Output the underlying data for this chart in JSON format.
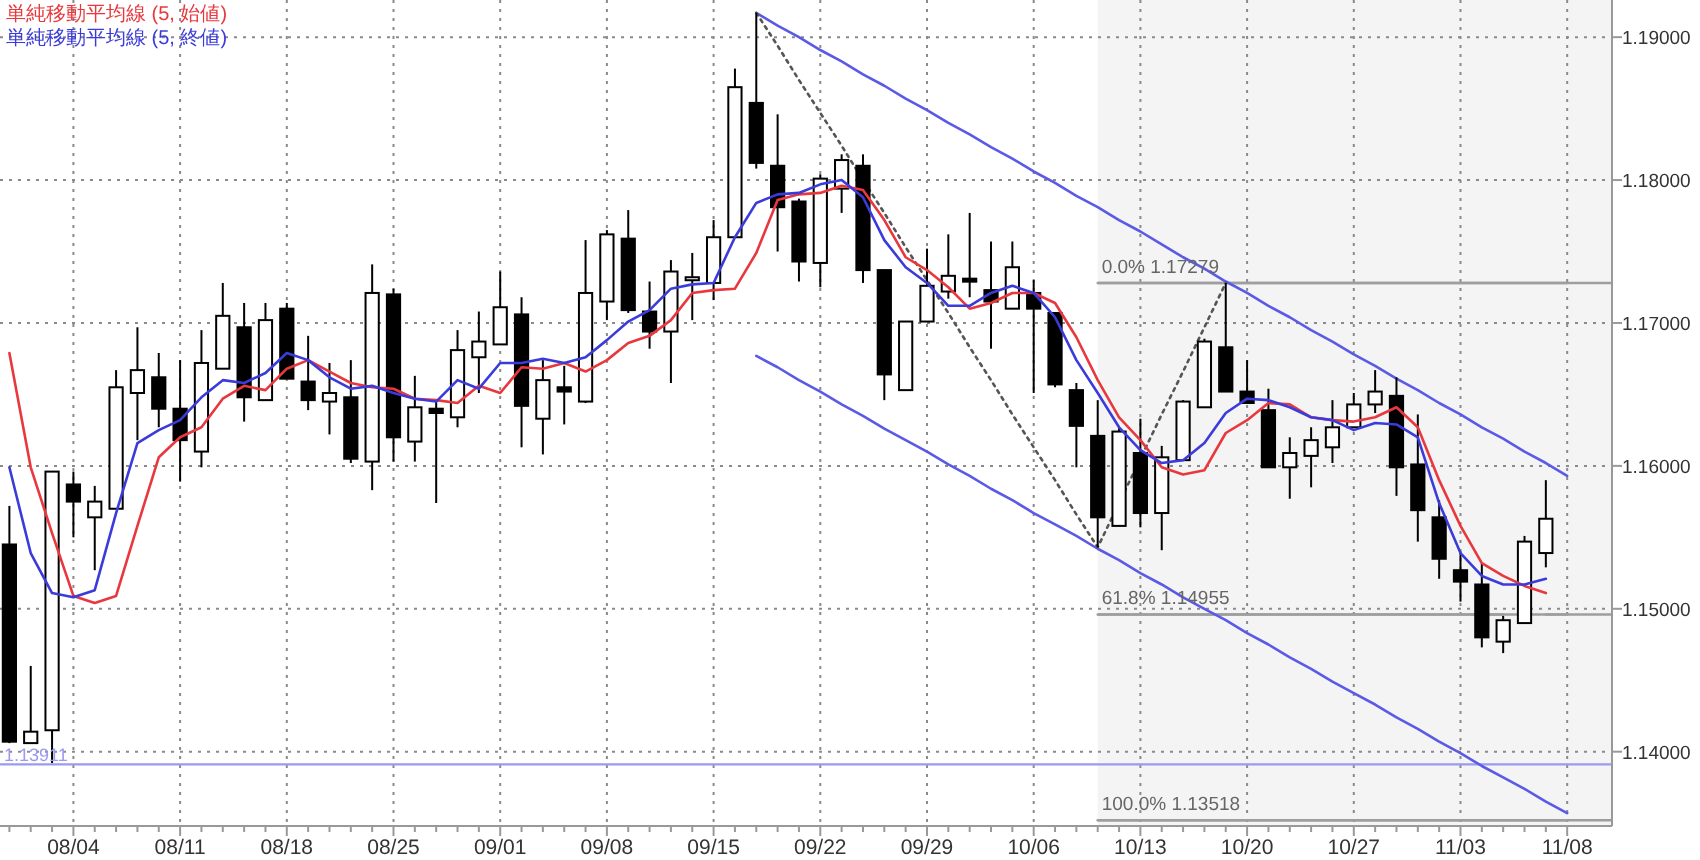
{
  "chart_data": {
    "type": "candlestick",
    "categories": [
      null,
      null,
      null,
      "08/04",
      null,
      null,
      null,
      null,
      "08/11",
      null,
      null,
      null,
      null,
      "08/18",
      null,
      null,
      null,
      null,
      "08/25",
      null,
      null,
      null,
      null,
      "09/01",
      null,
      null,
      null,
      null,
      "09/08",
      null,
      null,
      null,
      null,
      "09/15",
      null,
      null,
      null,
      null,
      "09/22",
      null,
      null,
      null,
      null,
      "09/29",
      null,
      null,
      null,
      null,
      "10/06",
      null,
      null,
      null,
      null,
      "10/13",
      null,
      null,
      null,
      null,
      "10/20",
      null,
      null,
      null,
      null,
      "10/27",
      null,
      null,
      null,
      null,
      "11/03",
      null,
      null,
      null,
      null,
      "11/08"
    ],
    "ohlc": [
      [
        1.1545,
        1.1572,
        1.1406,
        1.1407
      ],
      [
        1.1406,
        1.146,
        1.1406,
        1.1414
      ],
      [
        1.1415,
        1.1596,
        1.1392,
        1.1596
      ],
      [
        1.1587,
        1.1596,
        1.155,
        1.1575
      ],
      [
        1.1564,
        1.1586,
        1.1527,
        1.1575
      ],
      [
        1.157,
        1.1667,
        1.157,
        1.1655
      ],
      [
        1.1651,
        1.1697,
        1.1618,
        1.1667
      ],
      [
        1.1662,
        1.1679,
        1.1627,
        1.164
      ],
      [
        1.164,
        1.1674,
        1.1589,
        1.1618
      ],
      [
        1.161,
        1.1695,
        1.1599,
        1.1672
      ],
      [
        1.1668,
        1.1728,
        1.1668,
        1.1705
      ],
      [
        1.1697,
        1.1714,
        1.1631,
        1.1648
      ],
      [
        1.1646,
        1.1714,
        1.1646,
        1.1702
      ],
      [
        1.171,
        1.1714,
        1.1661,
        1.1661
      ],
      [
        1.1659,
        1.1691,
        1.1639,
        1.1646
      ],
      [
        1.1645,
        1.1672,
        1.1622,
        1.1651
      ],
      [
        1.1648,
        1.1674,
        1.1602,
        1.1605
      ],
      [
        1.1603,
        1.1741,
        1.1583,
        1.1721
      ],
      [
        1.172,
        1.1724,
        1.1603,
        1.162
      ],
      [
        1.1617,
        1.1663,
        1.1603,
        1.1641
      ],
      [
        1.164,
        1.1645,
        1.1574,
        1.1637
      ],
      [
        1.1634,
        1.1695,
        1.1627,
        1.1681
      ],
      [
        1.1676,
        1.1708,
        1.1651,
        1.1687
      ],
      [
        1.1685,
        1.1736,
        1.1685,
        1.1711
      ],
      [
        1.1706,
        1.1718,
        1.1613,
        1.1642
      ],
      [
        1.1633,
        1.1674,
        1.1608,
        1.166
      ],
      [
        1.1655,
        1.167,
        1.1629,
        1.1652
      ],
      [
        1.1645,
        1.1758,
        1.1644,
        1.1721
      ],
      [
        1.1715,
        1.1765,
        1.1702,
        1.1762
      ],
      [
        1.1759,
        1.1779,
        1.1707,
        1.1709
      ],
      [
        1.1708,
        1.1729,
        1.1682,
        1.1694
      ],
      [
        1.1694,
        1.1744,
        1.1658,
        1.1736
      ],
      [
        1.1731,
        1.1749,
        1.1702,
        1.1732
      ],
      [
        1.1728,
        1.1772,
        1.1716,
        1.176
      ],
      [
        1.176,
        1.1878,
        1.176,
        1.1865
      ],
      [
        1.1854,
        1.1917,
        1.1808,
        1.1812
      ],
      [
        1.181,
        1.1846,
        1.175,
        1.1781
      ],
      [
        1.1785,
        1.1787,
        1.1729,
        1.1743
      ],
      [
        1.1742,
        1.1804,
        1.1725,
        1.1801
      ],
      [
        1.1794,
        1.1818,
        1.1777,
        1.1814
      ],
      [
        1.181,
        1.1818,
        1.1728,
        1.1737
      ],
      [
        1.1737,
        1.1737,
        1.1646,
        1.1664
      ],
      [
        1.1653,
        1.1701,
        1.1653,
        1.1701
      ],
      [
        1.1701,
        1.1752,
        1.1701,
        1.1726
      ],
      [
        1.1722,
        1.1762,
        1.1717,
        1.1733
      ],
      [
        1.1731,
        1.1777,
        1.1718,
        1.1729
      ],
      [
        1.1723,
        1.1757,
        1.1682,
        1.1715
      ],
      [
        1.171,
        1.1757,
        1.171,
        1.1739
      ],
      [
        1.1721,
        1.173,
        1.1651,
        1.171
      ],
      [
        1.1707,
        1.1707,
        1.1655,
        1.1657
      ],
      [
        1.1653,
        1.1658,
        1.1599,
        1.1628
      ],
      [
        1.1621,
        1.1646,
        1.1543,
        1.1564
      ],
      [
        1.1558,
        1.1627,
        1.1558,
        1.1624
      ],
      [
        1.1609,
        1.1633,
        1.1557,
        1.1567
      ],
      [
        1.1567,
        1.1614,
        1.1541,
        1.1606
      ],
      [
        1.1604,
        1.1646,
        1.1604,
        1.1645
      ],
      [
        1.1641,
        1.1689,
        1.1641,
        1.1687
      ],
      [
        1.1683,
        1.1728,
        1.1652,
        1.1652
      ],
      [
        1.1652,
        1.1674,
        1.1644,
        1.1644
      ],
      [
        1.1639,
        1.1654,
        1.1599,
        1.1599
      ],
      [
        1.1599,
        1.162,
        1.1577,
        1.1609
      ],
      [
        1.1607,
        1.1627,
        1.1585,
        1.1618
      ],
      [
        1.1613,
        1.1646,
        1.1602,
        1.1627
      ],
      [
        1.1627,
        1.1651,
        1.1627,
        1.1643
      ],
      [
        1.1643,
        1.1667,
        1.1637,
        1.1652
      ],
      [
        1.1649,
        1.1662,
        1.1579,
        1.1599
      ],
      [
        1.1601,
        1.1636,
        1.1547,
        1.1569
      ],
      [
        1.1564,
        1.1576,
        1.1521,
        1.1535
      ],
      [
        1.1527,
        1.154,
        1.1505,
        1.1519
      ],
      [
        1.1517,
        1.1532,
        1.1473,
        1.148
      ],
      [
        1.1477,
        1.1495,
        1.1469,
        1.1492
      ],
      [
        1.149,
        1.1551,
        1.149,
        1.1547
      ],
      [
        1.1539,
        1.159,
        1.1529,
        1.1563
      ],
      null
    ],
    "series": [
      {
        "name": "単純移動平均線 (5, 始値)",
        "type": "line",
        "color": "#e8383d",
        "values": [
          1.1679,
          1.1599,
          1.1553,
          1.1509,
          1.1504,
          1.1509,
          1.1558,
          1.1606,
          1.162,
          1.1627,
          1.1647,
          1.1656,
          1.1653,
          1.1668,
          1.1674,
          1.1666,
          1.1658,
          1.1655,
          1.1654,
          1.1647,
          1.1646,
          1.1644,
          1.1656,
          1.1651,
          1.1669,
          1.1668,
          1.1672,
          1.1666,
          1.1674,
          1.1686,
          1.1691,
          1.1702,
          1.1721,
          1.1723,
          1.1724,
          1.1749,
          1.1786,
          1.179,
          1.1791,
          1.1796,
          1.1793,
          1.1772,
          1.1746,
          1.1737,
          1.1725,
          1.171,
          1.1714,
          1.1721,
          1.1721,
          1.1714,
          1.169,
          1.166,
          1.1634,
          1.1618,
          1.1599,
          1.1594,
          1.1597,
          1.1623,
          1.1632,
          1.1644,
          1.1643,
          1.1634,
          1.1632,
          1.1631,
          1.1634,
          1.1641,
          1.1627,
          1.159,
          1.1558,
          1.1532,
          1.1523,
          1.1516,
          1.1511,
          null
        ]
      },
      {
        "name": "単純移動平均線 (5, 終値)",
        "type": "line",
        "color": "#3b3bdb",
        "values": [
          1.1599,
          1.1539,
          1.1511,
          1.1508,
          1.1513,
          1.1567,
          1.1616,
          1.1625,
          1.1632,
          1.1648,
          1.166,
          1.1658,
          1.1665,
          1.1679,
          1.1674,
          1.1662,
          1.1654,
          1.1656,
          1.1651,
          1.1647,
          1.1645,
          1.166,
          1.1654,
          1.1672,
          1.1672,
          1.1675,
          1.1672,
          1.1676,
          1.1688,
          1.1701,
          1.1709,
          1.1724,
          1.1727,
          1.1728,
          1.176,
          1.1784,
          1.179,
          1.1791,
          1.1797,
          1.18,
          1.1788,
          1.1758,
          1.1739,
          1.1728,
          1.1712,
          1.1712,
          1.1721,
          1.1726,
          1.1721,
          1.1704,
          1.1674,
          1.1651,
          1.1627,
          1.1611,
          1.1602,
          1.1604,
          1.1616,
          1.1637,
          1.1647,
          1.1646,
          1.1641,
          1.1634,
          1.1632,
          1.1625,
          1.163,
          1.1629,
          1.162,
          1.1574,
          1.1539,
          1.1523,
          1.1517,
          1.1517,
          1.1521,
          null
        ]
      },
      {
        "type": "line",
        "color": "#9e9e9e",
        "values": [
          null,
          null,
          null,
          null,
          null,
          null,
          null,
          null,
          null,
          null,
          null,
          null,
          null,
          null,
          null,
          null,
          null,
          null,
          null,
          null,
          null,
          null,
          null,
          null,
          null,
          null,
          null,
          null,
          null,
          null,
          null,
          null,
          null,
          null,
          null,
          null,
          null,
          null,
          null,
          null,
          null,
          null,
          null,
          null,
          null,
          null,
          null,
          null,
          null,
          null,
          null,
          1.1728,
          1.1728,
          1.1728,
          1.1728,
          1.1728,
          1.1728,
          1.1728,
          1.1728,
          1.1728,
          1.1728,
          1.1728,
          1.1728,
          1.1728,
          1.1728,
          1.1728,
          1.1728,
          1.1728,
          1.1728,
          1.1728,
          1.1728,
          1.1728,
          1.1728,
          1.1728
        ]
      },
      {
        "type": "line",
        "color": "#9e9e9e",
        "values": [
          null,
          null,
          null,
          null,
          null,
          null,
          null,
          null,
          null,
          null,
          null,
          null,
          null,
          null,
          null,
          null,
          null,
          null,
          null,
          null,
          null,
          null,
          null,
          null,
          null,
          null,
          null,
          null,
          null,
          null,
          null,
          null,
          null,
          null,
          null,
          null,
          null,
          null,
          null,
          null,
          null,
          null,
          null,
          null,
          null,
          null,
          null,
          null,
          null,
          null,
          null,
          1.1496,
          1.1496,
          1.1496,
          1.1496,
          1.1496,
          1.1496,
          1.1496,
          1.1496,
          1.1496,
          1.1496,
          1.1496,
          1.1496,
          1.1496,
          1.1496,
          1.1496,
          1.1496,
          1.1496,
          1.1496,
          1.1496,
          1.1496,
          null,
          1.1496,
          1.1496
        ]
      },
      {
        "type": "line",
        "color": "#9e9e9e",
        "values": [
          null,
          null,
          null,
          null,
          null,
          null,
          null,
          null,
          null,
          null,
          null,
          null,
          null,
          null,
          null,
          null,
          null,
          null,
          null,
          null,
          null,
          null,
          null,
          null,
          null,
          null,
          null,
          null,
          null,
          null,
          null,
          null,
          null,
          null,
          null,
          null,
          null,
          null,
          null,
          null,
          null,
          null,
          null,
          null,
          null,
          null,
          null,
          null,
          null,
          null,
          null,
          1.1352,
          1.1352,
          1.1352,
          1.1352,
          1.1352,
          1.1352,
          1.1352,
          1.1352,
          1.1352,
          1.1352,
          1.1352,
          1.1352,
          1.1352,
          1.1352,
          1.1352,
          1.1352,
          1.1352,
          1.1352,
          1.1352,
          1.1352,
          1.1352,
          1.1352,
          1.1352
        ]
      },
      {
        "type": "line",
        "color": "#5a5ae6",
        "values": [
          null,
          null,
          null,
          null,
          null,
          null,
          null,
          null,
          null,
          null,
          null,
          null,
          null,
          null,
          null,
          null,
          null,
          null,
          null,
          null,
          null,
          null,
          null,
          null,
          null,
          null,
          null,
          null,
          null,
          null,
          null,
          null,
          null,
          null,
          null,
          1.1917,
          1.1908,
          1.19,
          1.1891,
          1.1883,
          1.1874,
          1.1866,
          1.1857,
          1.1849,
          1.184,
          1.1832,
          1.1823,
          1.1815,
          1.1806,
          1.1798,
          1.1789,
          1.1781,
          1.1772,
          1.1764,
          1.1755,
          1.1746,
          1.1738,
          1.1729,
          1.1721,
          1.1712,
          1.1704,
          1.1695,
          1.1687,
          1.1678,
          1.167,
          1.1661,
          1.1653,
          1.1644,
          1.1636,
          1.1627,
          1.1619,
          1.161,
          1.1602,
          1.1593
        ]
      },
      {
        "type": "line",
        "color": "#5a5ae6",
        "values": [
          null,
          null,
          null,
          null,
          null,
          null,
          null,
          null,
          null,
          null,
          null,
          null,
          null,
          null,
          null,
          null,
          null,
          null,
          null,
          null,
          null,
          null,
          null,
          null,
          null,
          null,
          null,
          null,
          null,
          null,
          null,
          null,
          null,
          null,
          null,
          1.1677,
          1.1669,
          1.166,
          1.1652,
          1.1643,
          1.1635,
          1.1626,
          1.1618,
          1.161,
          1.1601,
          1.1593,
          1.1584,
          1.1576,
          1.1567,
          1.1559,
          1.1551,
          1.1542,
          1.1534,
          1.1525,
          1.1517,
          1.1508,
          1.15,
          1.1492,
          1.1483,
          1.1475,
          1.1466,
          1.1458,
          1.1449,
          1.1441,
          1.1433,
          1.1424,
          1.1416,
          1.1407,
          1.1399,
          1.139,
          1.1382,
          1.1374,
          1.1365,
          1.1357
        ]
      },
      {
        "type": "line",
        "color": "#555555",
        "line_style": "dotted",
        "values": [
          null,
          null,
          null,
          null,
          null,
          null,
          null,
          null,
          null,
          null,
          null,
          null,
          null,
          null,
          null,
          null,
          null,
          null,
          null,
          null,
          null,
          null,
          null,
          null,
          null,
          null,
          null,
          null,
          null,
          null,
          null,
          null,
          null,
          null,
          null,
          1.1917,
          1.1894,
          1.187,
          1.1847,
          1.1824,
          1.18,
          1.1777,
          1.1753,
          1.173,
          1.1707,
          1.1683,
          1.166,
          1.1636,
          1.1613,
          1.159,
          1.1566,
          1.1543,
          1.1574,
          1.1605,
          1.1636,
          1.1666,
          1.1697,
          1.1728,
          null,
          null,
          null,
          null,
          null,
          null,
          null,
          null,
          null,
          null,
          null,
          null,
          null,
          null,
          null,
          null
        ]
      }
    ],
    "ylim": [
      1.1348,
      1.1926
    ],
    "yticks": [
      {
        "value": 1.14,
        "label": "1.14000"
      },
      {
        "value": 1.15,
        "label": "1.15000"
      },
      {
        "value": 1.16,
        "label": "1.16000"
      },
      {
        "value": 1.17,
        "label": "1.17000"
      },
      {
        "value": 1.18,
        "label": "1.18000"
      },
      {
        "value": 1.19,
        "label": "1.19000"
      }
    ],
    "grid": true,
    "legend": "top left",
    "ref_lines": [
      {
        "axis": "y",
        "value": 1.13911,
        "label": "1.13911",
        "color": "#9a9af0"
      }
    ],
    "annotations": [
      "0.0% 1.17279",
      "61.8% 1.14955",
      "100.0% 1.13518"
    ]
  }
}
